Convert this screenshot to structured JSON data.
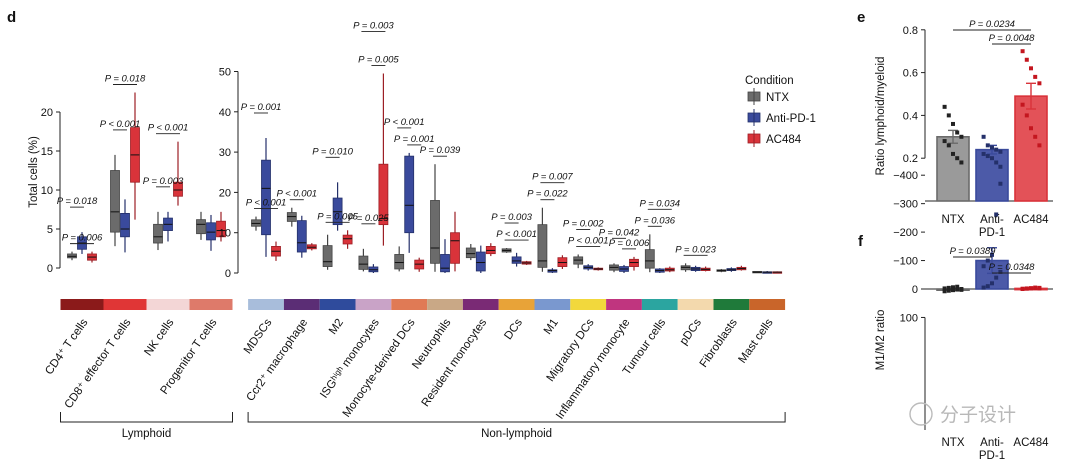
{
  "panels": {
    "d": "d",
    "e": "e",
    "f": "f"
  },
  "colors": {
    "NTX": "#6b6b6b",
    "Anti-PD-1": "#3a4a9c",
    "AC484": "#d9333a"
  },
  "legend": {
    "title": "Condition",
    "items": [
      {
        "label": "NTX",
        "color": "#6b6b6b"
      },
      {
        "label": "Anti-PD-1",
        "color": "#3a4a9c"
      },
      {
        "label": "AC484",
        "color": "#d9333a"
      }
    ]
  },
  "chart_data": [
    {
      "id": "d-lymphoid",
      "type": "box",
      "ylabel": "Total cells (%)",
      "ylim": [
        -1,
        25
      ],
      "yticks": [
        0,
        5,
        10,
        15,
        20
      ],
      "series": [
        "NTX",
        "Anti-PD-1",
        "AC484"
      ],
      "group_label": "Lymphoid",
      "categories": [
        {
          "label": "CD4⁺ T cells",
          "color": "#8b1a1a",
          "boxes": [
            [
              1.0,
              1.3,
              1.5,
              1.8,
              2.1
            ],
            [
              1.8,
              2.4,
              3.2,
              4.0,
              4.6
            ],
            [
              0.7,
              1.0,
              1.4,
              1.8,
              2.1
            ]
          ]
        },
        {
          "label": "CD8⁺ effector T cells",
          "color": "#e03636",
          "boxes": [
            [
              2.8,
              4.6,
              7.2,
              12.5,
              14.5
            ],
            [
              2.0,
              4.0,
              5.0,
              7.0,
              8.8
            ],
            [
              6.2,
              11.0,
              14.5,
              18.0,
              22.5
            ]
          ]
        },
        {
          "label": "NK cells",
          "color": "#f3d6d6",
          "boxes": [
            [
              2.3,
              3.2,
              4.0,
              5.6,
              7.2
            ],
            [
              3.4,
              4.8,
              5.6,
              6.4,
              7.2
            ],
            [
              8.0,
              9.2,
              10.0,
              11.0,
              16.2
            ]
          ]
        },
        {
          "label": "Progenitor T cells",
          "color": "#de7a6a",
          "boxes": [
            [
              3.6,
              4.4,
              5.6,
              6.2,
              7.2
            ],
            [
              2.2,
              3.6,
              4.6,
              5.8,
              6.8
            ],
            [
              3.4,
              4.0,
              4.8,
              6.0,
              7.2
            ]
          ]
        }
      ],
      "annotations": [
        {
          "text": "P = 0.018",
          "cat": 0,
          "from": 0,
          "to": 1
        },
        {
          "text": "P = 0.006",
          "cat": 0,
          "from": 0,
          "to": 2
        },
        {
          "text": "P < 0.001",
          "cat": 1,
          "from": 0,
          "to": 1
        },
        {
          "text": "P = 0.018",
          "cat": 1,
          "from": 0,
          "to": 2
        },
        {
          "text": "P = 0.003",
          "cat": 2,
          "from": 0,
          "to": 1
        },
        {
          "text": "P < 0.001",
          "cat": 2,
          "from": 0,
          "to": 2
        }
      ]
    },
    {
      "id": "d-nonlymphoid",
      "type": "box",
      "ylim": [
        -1.5,
        52
      ],
      "yticks": [
        0,
        10,
        20,
        30,
        40,
        50
      ],
      "series": [
        "NTX",
        "Anti-PD-1",
        "AC484"
      ],
      "group_label": "Non-lymphoid",
      "categories": [
        {
          "label": "MDSCs",
          "color": "#a8bddb",
          "boxes": [
            [
              10.5,
              11.6,
              12.3,
              13.2,
              14.0
            ],
            [
              4.0,
              9.5,
              21.0,
              28.0,
              33.5
            ],
            [
              3.0,
              4.2,
              5.4,
              6.6,
              7.8
            ]
          ]
        },
        {
          "label": "Ccr2⁺ macrophage",
          "color": "#5b2d75",
          "boxes": [
            [
              11.5,
              12.8,
              14.0,
              15.0,
              16.2
            ],
            [
              3.8,
              5.2,
              7.5,
              13.0,
              14.2
            ],
            [
              5.6,
              6.0,
              6.4,
              7.0,
              7.4
            ]
          ]
        },
        {
          "label": "M2",
          "color": "#2f4b9c",
          "boxes": [
            [
              0.8,
              1.6,
              2.8,
              6.8,
              9.5
            ],
            [
              10.5,
              12.0,
              15.2,
              18.6,
              22.5
            ],
            [
              6.0,
              7.2,
              8.5,
              9.4,
              10.6
            ]
          ]
        },
        {
          "label": "ISGʰⁱᵍʰ monocytes",
          "color": "#c9a3c7",
          "boxes": [
            [
              0.4,
              0.9,
              2.2,
              4.2,
              6.0
            ],
            [
              0.0,
              0.3,
              0.8,
              1.5,
              2.2
            ],
            [
              6.8,
              12.0,
              13.5,
              27.0,
              49.5
            ]
          ]
        },
        {
          "label": "Monocyte-derived DCs",
          "color": "#e07a55",
          "boxes": [
            [
              0.4,
              1.0,
              2.6,
              4.6,
              6.6
            ],
            [
              5.0,
              10.0,
              16.8,
              29.0,
              29.8
            ],
            [
              0.3,
              1.0,
              2.2,
              3.2,
              3.8
            ]
          ]
        },
        {
          "label": "Neutrophils",
          "color": "#c9a886",
          "boxes": [
            [
              0.3,
              2.4,
              6.2,
              18.0,
              27.0
            ],
            [
              0.0,
              0.3,
              1.2,
              4.6,
              8.4
            ],
            [
              0.4,
              2.4,
              8.0,
              10.0,
              15.2
            ]
          ]
        },
        {
          "label": "Resident monocytes",
          "color": "#7a2a75",
          "boxes": [
            [
              3.2,
              3.8,
              4.8,
              6.2,
              7.2
            ],
            [
              0.0,
              0.5,
              2.6,
              5.2,
              6.8
            ],
            [
              4.2,
              4.8,
              5.6,
              6.6,
              7.4
            ]
          ]
        },
        {
          "label": "DCs",
          "color": "#e8a338",
          "boxes": [
            [
              5.0,
              5.2,
              5.6,
              6.0,
              6.2
            ],
            [
              1.6,
              2.4,
              3.0,
              4.0,
              5.0
            ],
            [
              2.0,
              2.2,
              2.5,
              2.8,
              3.0
            ]
          ]
        },
        {
          "label": "M1",
          "color": "#7a98cf",
          "boxes": [
            [
              0.3,
              1.4,
              3.0,
              12.0,
              16.2
            ],
            [
              0.0,
              0.2,
              0.6,
              0.8,
              1.2
            ],
            [
              1.0,
              1.6,
              2.6,
              3.8,
              4.4
            ]
          ]
        },
        {
          "label": "Migratory DCs",
          "color": "#f2d83c",
          "boxes": [
            [
              1.2,
              2.2,
              3.2,
              4.0,
              4.6
            ],
            [
              0.6,
              1.0,
              1.4,
              1.8,
              2.2
            ],
            [
              0.6,
              0.8,
              1.0,
              1.2,
              1.4
            ]
          ]
        },
        {
          "label": "Inflammatory monocyte",
          "color": "#c0357f",
          "boxes": [
            [
              0.2,
              0.7,
              1.4,
              2.0,
              2.4
            ],
            [
              0.0,
              0.4,
              1.0,
              1.6,
              2.0
            ],
            [
              0.6,
              1.6,
              2.6,
              3.4,
              4.0
            ]
          ]
        },
        {
          "label": "Tumour cells",
          "color": "#2ba5a0",
          "boxes": [
            [
              0.2,
              1.2,
              3.0,
              5.8,
              9.6
            ],
            [
              0.0,
              0.2,
              0.6,
              1.0,
              1.2
            ],
            [
              0.2,
              0.5,
              0.8,
              1.2,
              1.6
            ]
          ]
        },
        {
          "label": "pDCs",
          "color": "#f3d9ad",
          "boxes": [
            [
              0.3,
              0.8,
              1.4,
              1.8,
              2.4
            ],
            [
              0.3,
              0.6,
              1.0,
              1.4,
              1.8
            ],
            [
              0.4,
              0.6,
              0.9,
              1.2,
              1.6
            ]
          ]
        },
        {
          "label": "Fibroblasts",
          "color": "#1f7a3a",
          "boxes": [
            [
              0.2,
              0.4,
              0.6,
              0.8,
              1.0
            ],
            [
              0.3,
              0.6,
              0.8,
              1.1,
              1.4
            ],
            [
              0.6,
              0.8,
              1.1,
              1.4,
              1.8
            ]
          ]
        },
        {
          "label": "Mast cells",
          "color": "#c9652a",
          "boxes": [
            [
              0.0,
              0.1,
              0.2,
              0.4,
              0.5
            ],
            [
              0.0,
              0.1,
              0.2,
              0.3,
              0.5
            ],
            [
              0.0,
              0.1,
              0.2,
              0.3,
              0.4
            ]
          ]
        }
      ],
      "annotations": [
        {
          "text": "P = 0.001",
          "cat": 0,
          "from": 0,
          "to": 1
        },
        {
          "text": "P < 0.001",
          "cat": 0,
          "from": 0,
          "to": 2
        },
        {
          "text": "P < 0.001",
          "cat": 1,
          "from": 0,
          "to": 1
        },
        {
          "text": "P = 0.010",
          "cat": 2,
          "from": 0,
          "to": 1
        },
        {
          "text": "P = 0.005",
          "cat": 2,
          "from": 0,
          "to": 2
        },
        {
          "text": "P = 0.003",
          "cat": 3,
          "from": 0,
          "to": 2
        },
        {
          "text": "P = 0.025",
          "cat": 3,
          "from": 0,
          "to": 1
        },
        {
          "text": "P = 0.005",
          "cat": 3,
          "from": 1,
          "to": 2
        },
        {
          "text": "P < 0.001",
          "cat": 4,
          "from": 0,
          "to": 1
        },
        {
          "text": "P = 0.001",
          "cat": 4,
          "from": 1,
          "to": 2
        },
        {
          "text": "P = 0.039",
          "cat": 5,
          "from": 0,
          "to": 1
        },
        {
          "text": "P = 0.003",
          "cat": 7,
          "from": 0,
          "to": 1
        },
        {
          "text": "P < 0.001",
          "cat": 7,
          "from": 0,
          "to": 2
        },
        {
          "text": "P = 0.007",
          "cat": 8,
          "from": 0,
          "to": 2
        },
        {
          "text": "P = 0.022",
          "cat": 8,
          "from": 0,
          "to": 1
        },
        {
          "text": "P = 0.002",
          "cat": 9,
          "from": 0,
          "to": 1
        },
        {
          "text": "P < 0.001",
          "cat": 9,
          "from": 0,
          "to": 2
        },
        {
          "text": "P = 0.042",
          "cat": 10,
          "from": 0,
          "to": 1
        },
        {
          "text": "P = 0.006",
          "cat": 10,
          "from": 1,
          "to": 2
        },
        {
          "text": "P = 0.034",
          "cat": 11,
          "from": 0,
          "to": 2
        },
        {
          "text": "P = 0.036",
          "cat": 11,
          "from": 0,
          "to": 1
        },
        {
          "text": "P = 0.023",
          "cat": 12,
          "from": 0,
          "to": 2
        }
      ]
    },
    {
      "id": "e",
      "type": "bar",
      "ylabel": "Ratio lymphoid/myeloid",
      "ylim": [
        0,
        0.8
      ],
      "yticks": [
        "0.2",
        "0.4",
        "0.6",
        "0.8"
      ],
      "categories": [
        "NTX",
        "Anti-PD-1",
        "AC484"
      ],
      "xtick_labels": [
        [
          "NTX"
        ],
        [
          "Anti-",
          "PD-1"
        ],
        [
          "AC484"
        ]
      ],
      "values": [
        0.3,
        0.24,
        0.49
      ],
      "errors": [
        0.03,
        0.02,
        0.06
      ],
      "points": [
        [
          0.44,
          0.4,
          0.36,
          0.32,
          0.3,
          0.28,
          0.26,
          0.22,
          0.2,
          0.18
        ],
        [
          0.3,
          0.26,
          0.25,
          0.24,
          0.23,
          0.22,
          0.21,
          0.2,
          0.18,
          0.16
        ],
        [
          0.7,
          0.66,
          0.62,
          0.58,
          0.55,
          0.45,
          0.4,
          0.34,
          0.3,
          0.26
        ]
      ],
      "annotations": [
        {
          "text": "P = 0.0234",
          "from": 0,
          "to": 2
        },
        {
          "text": "P = 0.0048",
          "from": 1,
          "to": 2
        }
      ]
    },
    {
      "id": "f",
      "type": "bar",
      "ylabel": "M1/M2 ratio",
      "ylim": [
        -400,
        100
      ],
      "yticks": [
        "100",
        "0",
        "−100",
        "−200",
        "−300",
        "−400"
      ],
      "categories": [
        "NTX",
        "Anti-PD-1",
        "AC484"
      ],
      "xtick_labels": [
        [
          "NTX"
        ],
        [
          "Anti-",
          "PD-1"
        ],
        [
          "AC484"
        ]
      ],
      "values": [
        1,
        -100,
        -2
      ],
      "errors": [
        3,
        45,
        2
      ],
      "points": [
        [
          8,
          6,
          4,
          2,
          0,
          -2,
          -4,
          -6,
          -8,
          3
        ],
        [
          -5,
          -10,
          -20,
          -40,
          -60,
          -80,
          -100,
          -120,
          -262,
          -370
        ],
        [
          0,
          -1,
          -2,
          -3,
          -4,
          -1,
          -2,
          -3,
          -5,
          -2
        ]
      ],
      "annotations": [
        {
          "text": "P = 0.0389",
          "from": 0,
          "to": 1
        },
        {
          "text": "P = 0.0348",
          "from": 1,
          "to": 2
        }
      ]
    }
  ],
  "watermark": "分子设计"
}
